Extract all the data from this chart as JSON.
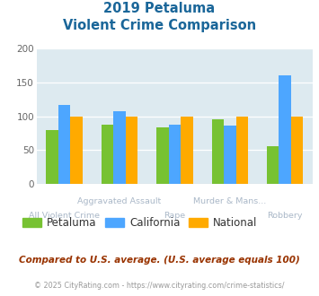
{
  "title_line1": "2019 Petaluma",
  "title_line2": "Violent Crime Comparison",
  "categories": [
    "All Violent Crime",
    "Aggravated Assault",
    "Rape",
    "Murder & Mans...",
    "Robbery"
  ],
  "series": {
    "Petaluma": [
      80,
      87,
      84,
      96,
      56
    ],
    "California": [
      117,
      107,
      87,
      86,
      161
    ],
    "National": [
      100,
      100,
      100,
      100,
      100
    ]
  },
  "colors": {
    "Petaluma": "#77c232",
    "California": "#4da6ff",
    "National": "#ffaa00"
  },
  "ylim": [
    0,
    200
  ],
  "yticks": [
    0,
    50,
    100,
    150,
    200
  ],
  "background_color": "#ddeaf0",
  "title_color": "#1a6699",
  "label_color": "#aab8c8",
  "legend_text_color": "#333333",
  "subtitle": "Compared to U.S. average. (U.S. average equals 100)",
  "footer": "© 2025 CityRating.com - https://www.cityrating.com/crime-statistics/",
  "subtitle_color": "#993300",
  "footer_color": "#999999",
  "bar_width": 0.22
}
